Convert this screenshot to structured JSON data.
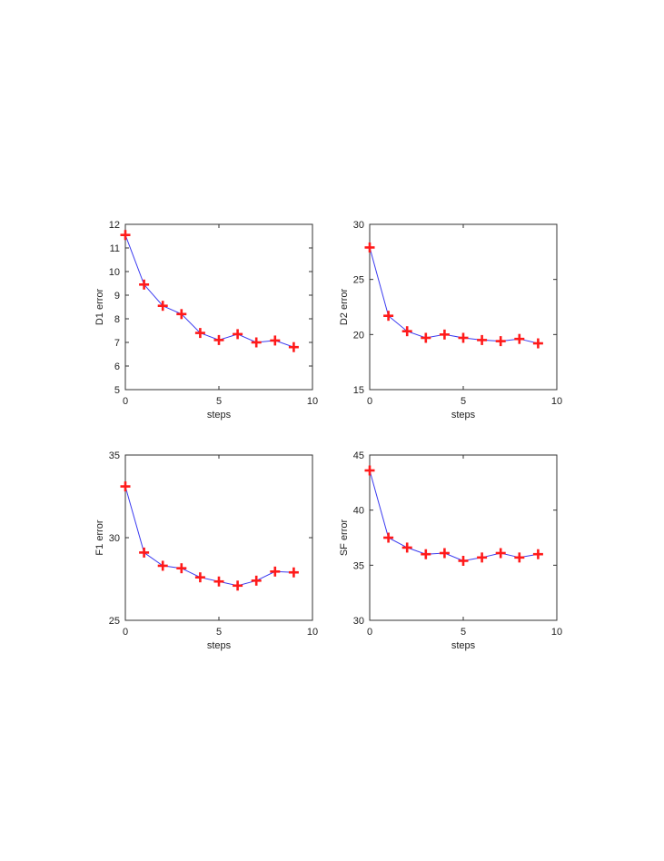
{
  "colors": {
    "line": "#3a3af0",
    "marker": "#ff1a1a",
    "axis": "#333333"
  },
  "chart_data": [
    {
      "type": "line",
      "xlabel": "steps",
      "ylabel": "D1 error",
      "xlim": [
        0,
        10
      ],
      "ylim": [
        5,
        12
      ],
      "xticks": [
        0,
        5,
        10
      ],
      "yticks": [
        5,
        6,
        7,
        8,
        9,
        10,
        11,
        12
      ],
      "marker": "plus",
      "x": [
        0,
        1,
        2,
        3,
        4,
        5,
        6,
        7,
        8,
        9
      ],
      "y": [
        11.55,
        9.45,
        8.55,
        8.2,
        7.4,
        7.1,
        7.35,
        7.0,
        7.08,
        6.8
      ],
      "grid": false
    },
    {
      "type": "line",
      "xlabel": "steps",
      "ylabel": "D2 error",
      "xlim": [
        0,
        10
      ],
      "ylim": [
        15,
        30
      ],
      "xticks": [
        0,
        5,
        10
      ],
      "yticks": [
        15,
        20,
        25,
        30
      ],
      "marker": "plus",
      "x": [
        0,
        1,
        2,
        3,
        4,
        5,
        6,
        7,
        8,
        9
      ],
      "y": [
        27.9,
        21.7,
        20.3,
        19.7,
        20.0,
        19.7,
        19.5,
        19.4,
        19.6,
        19.2
      ],
      "grid": false
    },
    {
      "type": "line",
      "xlabel": "steps",
      "ylabel": "F1 error",
      "xlim": [
        0,
        10
      ],
      "ylim": [
        25,
        35
      ],
      "xticks": [
        0,
        5,
        10
      ],
      "yticks": [
        25,
        30,
        35
      ],
      "marker": "plus",
      "x": [
        0,
        1,
        2,
        3,
        4,
        5,
        6,
        7,
        8,
        9
      ],
      "y": [
        33.1,
        29.1,
        28.3,
        28.15,
        27.6,
        27.35,
        27.1,
        27.4,
        27.95,
        27.9
      ],
      "grid": false
    },
    {
      "type": "line",
      "xlabel": "steps",
      "ylabel": "SF error",
      "xlim": [
        0,
        10
      ],
      "ylim": [
        30,
        45
      ],
      "xticks": [
        0,
        5,
        10
      ],
      "yticks": [
        30,
        35,
        40,
        45
      ],
      "marker": "plus",
      "x": [
        0,
        1,
        2,
        3,
        4,
        5,
        6,
        7,
        8,
        9
      ],
      "y": [
        43.6,
        37.5,
        36.6,
        36.0,
        36.1,
        35.4,
        35.7,
        36.1,
        35.7,
        36.0
      ],
      "grid": false
    }
  ]
}
